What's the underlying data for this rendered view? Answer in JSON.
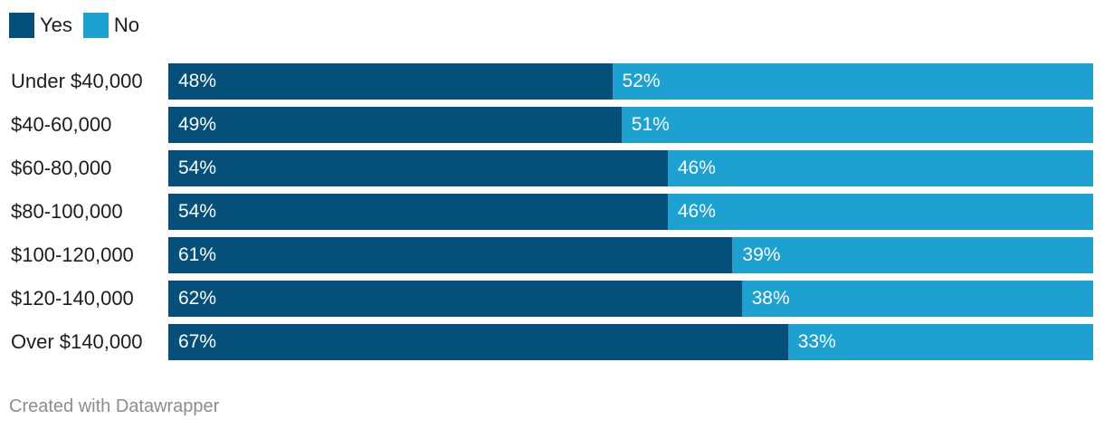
{
  "legend": {
    "items": [
      {
        "label": "Yes",
        "color": "#05507a"
      },
      {
        "label": "No",
        "color": "#1da1d1"
      }
    ]
  },
  "chart_data": {
    "type": "bar",
    "orientation": "horizontal",
    "stacked": true,
    "categories": [
      "Under $40,000",
      "$40-60,000",
      "$60-80,000",
      "$80-100,000",
      "$100-120,000",
      "$120-140,000",
      "Over $140,000"
    ],
    "series": [
      {
        "name": "Yes",
        "color": "#05507a",
        "values": [
          48,
          49,
          54,
          54,
          61,
          62,
          67
        ],
        "labels": [
          "48%",
          "49%",
          "54%",
          "54%",
          "61%",
          "62%",
          "67%"
        ]
      },
      {
        "name": "No",
        "color": "#1da1d1",
        "values": [
          52,
          51,
          46,
          46,
          39,
          38,
          33
        ],
        "labels": [
          "52%",
          "51%",
          "46%",
          "46%",
          "39%",
          "38%",
          "33%"
        ]
      }
    ],
    "xlim": [
      0,
      100
    ],
    "legend_position": "top-left",
    "grid": false
  },
  "footer": {
    "credit": "Created with Datawrapper"
  }
}
